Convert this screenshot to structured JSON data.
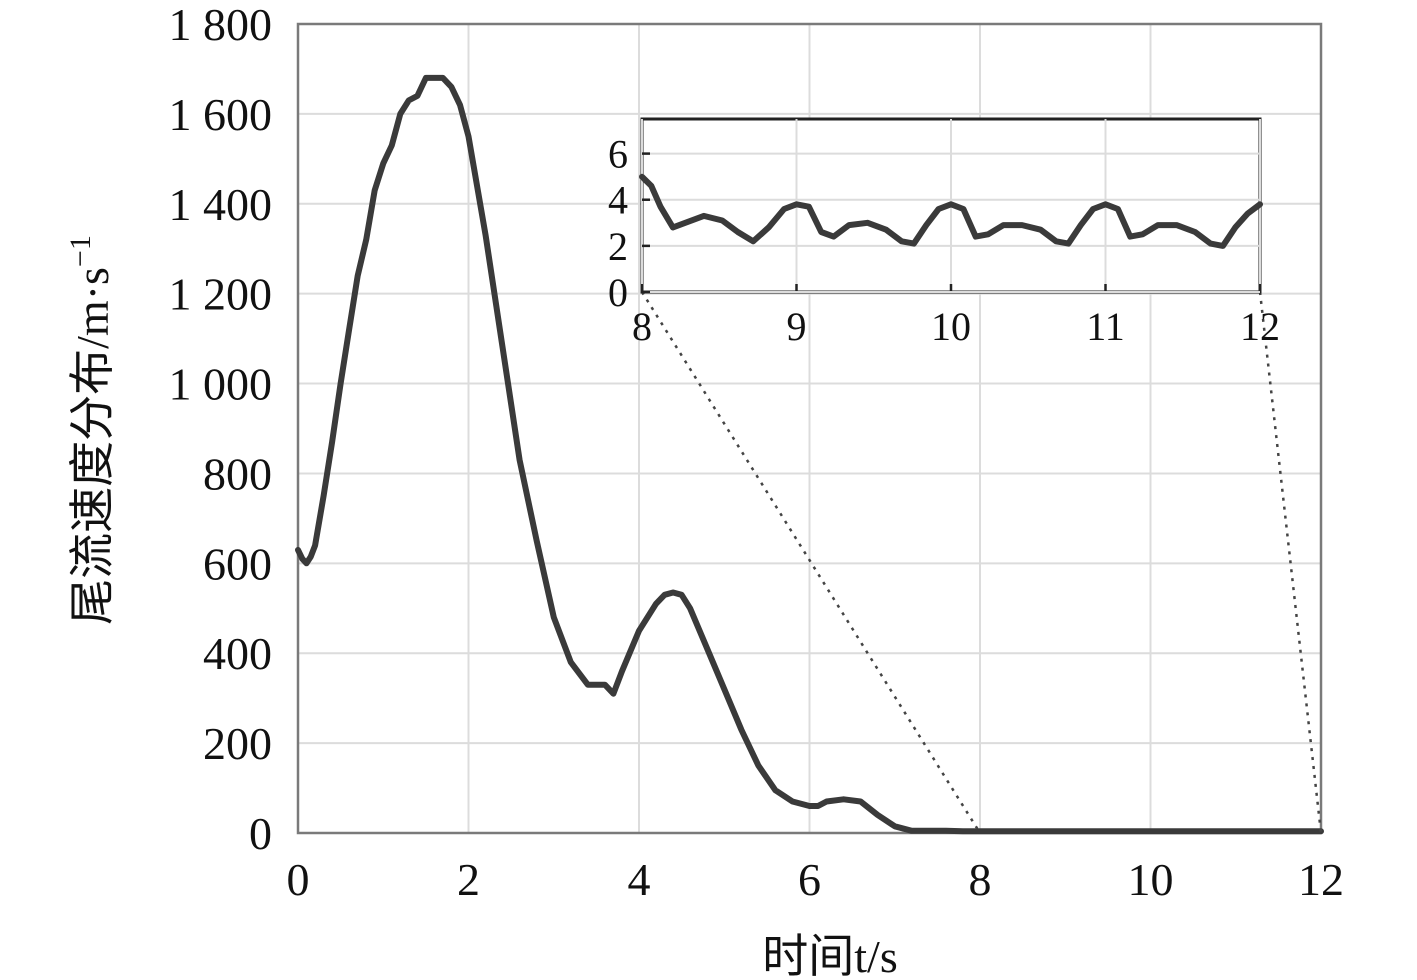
{
  "chart_data": {
    "type": "line",
    "xlabel": "时间t/s",
    "ylabel": "尾流速度分布/m·s",
    "ylabel_superscript": "−1",
    "xlim": [
      0,
      12
    ],
    "ylim": [
      0,
      1800
    ],
    "xticks": [
      0,
      2,
      4,
      6,
      8,
      10,
      12
    ],
    "xtick_labels": [
      "0",
      "2",
      "4",
      "6",
      "8",
      "10",
      "12"
    ],
    "yticks": [
      0,
      200,
      400,
      600,
      800,
      1000,
      1200,
      1400,
      1600,
      1800
    ],
    "ytick_labels": [
      "0",
      "200",
      "400",
      "600",
      "800",
      "1 000",
      "1 200",
      "1 400",
      "1 600",
      "1 800"
    ],
    "grid": true,
    "series": [
      {
        "x": [
          0,
          0.05,
          0.1,
          0.15,
          0.2,
          0.3,
          0.4,
          0.5,
          0.6,
          0.7,
          0.8,
          0.9,
          1.0,
          1.1,
          1.2,
          1.3,
          1.4,
          1.5,
          1.6,
          1.7,
          1.8,
          1.9,
          2.0,
          2.2,
          2.4,
          2.6,
          2.8,
          3.0,
          3.2,
          3.4,
          3.6,
          3.7,
          3.8,
          4.0,
          4.2,
          4.3,
          4.4,
          4.5,
          4.6,
          4.8,
          5.0,
          5.2,
          5.4,
          5.6,
          5.8,
          6.0,
          6.1,
          6.2,
          6.4,
          6.6,
          6.8,
          7.0,
          7.2,
          7.4,
          7.6,
          7.8,
          8.0,
          9.0,
          10.0,
          11.0,
          12.0
        ],
        "values": [
          630,
          610,
          600,
          615,
          640,
          750,
          870,
          1000,
          1120,
          1240,
          1320,
          1430,
          1490,
          1530,
          1600,
          1630,
          1640,
          1680,
          1680,
          1680,
          1660,
          1620,
          1550,
          1330,
          1080,
          830,
          650,
          480,
          380,
          330,
          330,
          310,
          360,
          450,
          510,
          530,
          535,
          530,
          500,
          410,
          320,
          230,
          150,
          95,
          70,
          60,
          60,
          70,
          75,
          70,
          40,
          15,
          5,
          5,
          5,
          4,
          4,
          4,
          4,
          4,
          4
        ]
      }
    ],
    "inset": {
      "type": "line",
      "xlim": [
        8,
        12
      ],
      "ylim": [
        0,
        7.5
      ],
      "xticks": [
        8,
        9,
        10,
        11,
        12
      ],
      "xtick_labels": [
        "8",
        "9",
        "10",
        "11",
        "12"
      ],
      "yticks": [
        0,
        2,
        4,
        6
      ],
      "ytick_labels": [
        "0",
        "2",
        "4",
        "6"
      ],
      "grid": true,
      "series": [
        {
          "x": [
            8.0,
            8.06,
            8.12,
            8.2,
            8.28,
            8.4,
            8.52,
            8.62,
            8.72,
            8.82,
            8.92,
            9.0,
            9.08,
            9.16,
            9.24,
            9.34,
            9.46,
            9.58,
            9.68,
            9.76,
            9.84,
            9.92,
            10.0,
            10.08,
            10.16,
            10.24,
            10.34,
            10.46,
            10.58,
            10.68,
            10.76,
            10.84,
            10.92,
            11.0,
            11.08,
            11.16,
            11.24,
            11.34,
            11.46,
            11.58,
            11.68,
            11.76,
            11.84,
            11.92,
            12.0
          ],
          "values": [
            5.0,
            4.6,
            3.7,
            2.8,
            3.0,
            3.3,
            3.1,
            2.6,
            2.2,
            2.8,
            3.6,
            3.8,
            3.7,
            2.6,
            2.4,
            2.9,
            3.0,
            2.7,
            2.2,
            2.1,
            2.9,
            3.6,
            3.8,
            3.6,
            2.4,
            2.5,
            2.9,
            2.9,
            2.7,
            2.2,
            2.1,
            2.9,
            3.6,
            3.8,
            3.6,
            2.4,
            2.5,
            2.9,
            2.9,
            2.6,
            2.1,
            2.0,
            2.8,
            3.4,
            3.8
          ]
        }
      ]
    }
  }
}
